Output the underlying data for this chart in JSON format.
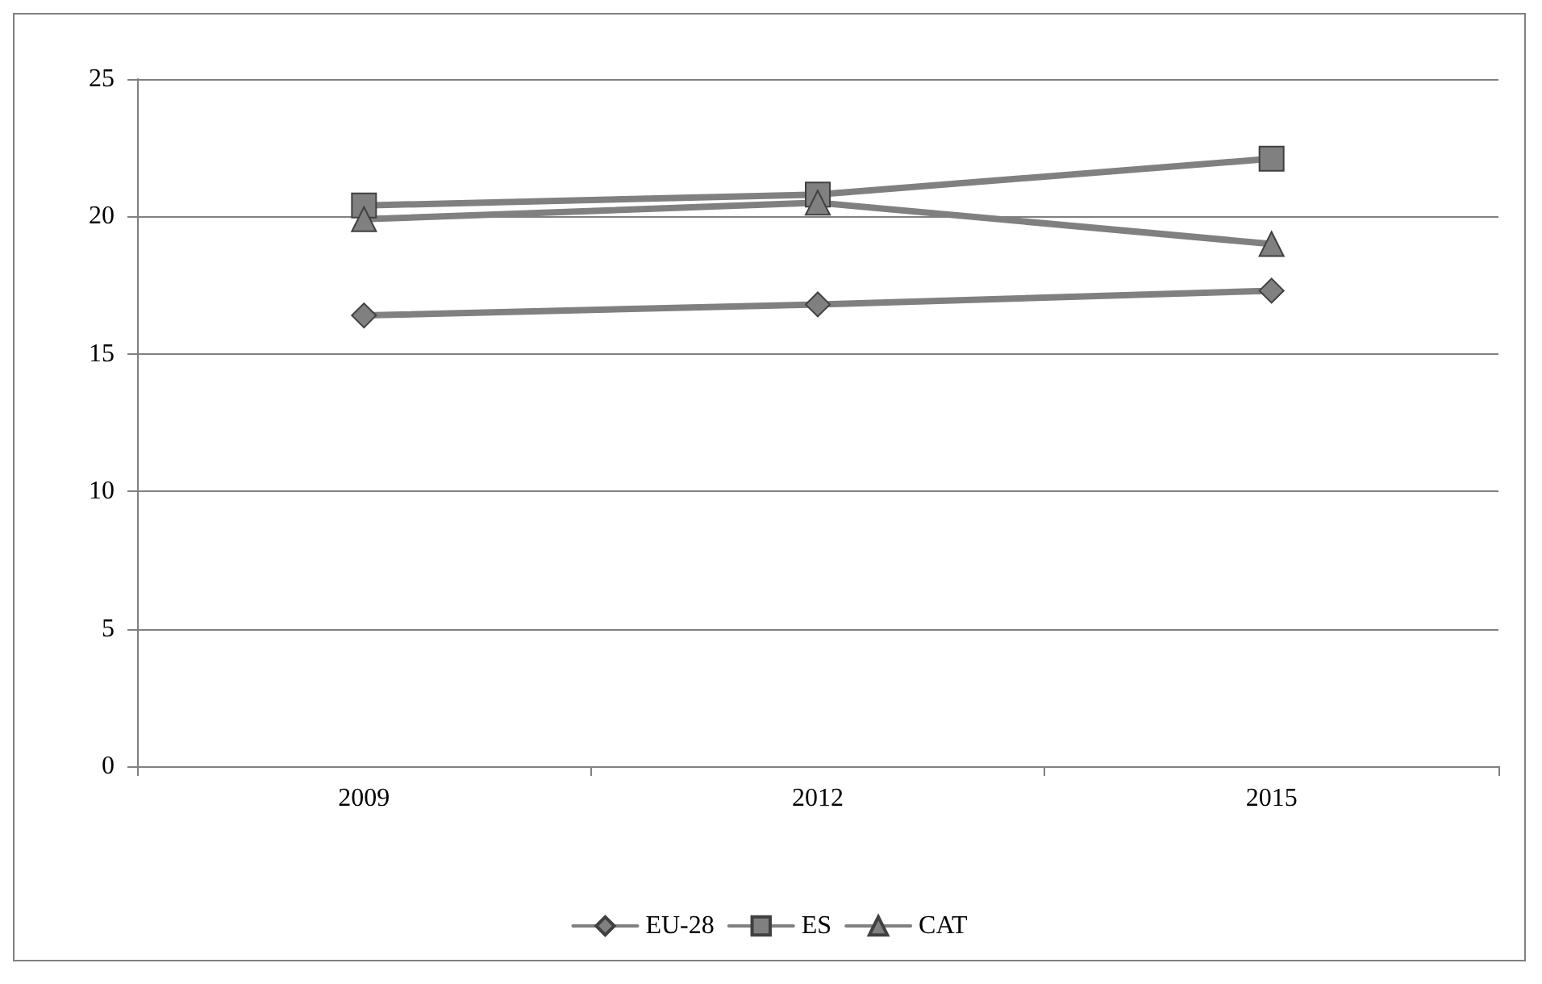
{
  "chart_data": {
    "type": "line",
    "categories": [
      "2009",
      "2012",
      "2015"
    ],
    "series": [
      {
        "name": "EU-28",
        "color": "#808080",
        "marker": "diamond",
        "values": [
          16.4,
          16.8,
          17.3
        ]
      },
      {
        "name": "ES",
        "color": "#808080",
        "marker": "square",
        "values": [
          20.4,
          20.8,
          22.1
        ]
      },
      {
        "name": "CAT",
        "color": "#808080",
        "marker": "triangle",
        "values": [
          19.9,
          20.5,
          19.0
        ]
      }
    ],
    "ylim": [
      0,
      25
    ],
    "yticks": [
      0,
      5,
      10,
      15,
      20,
      25
    ],
    "grid": "y",
    "legend": "bottom",
    "line_style": "solid"
  }
}
